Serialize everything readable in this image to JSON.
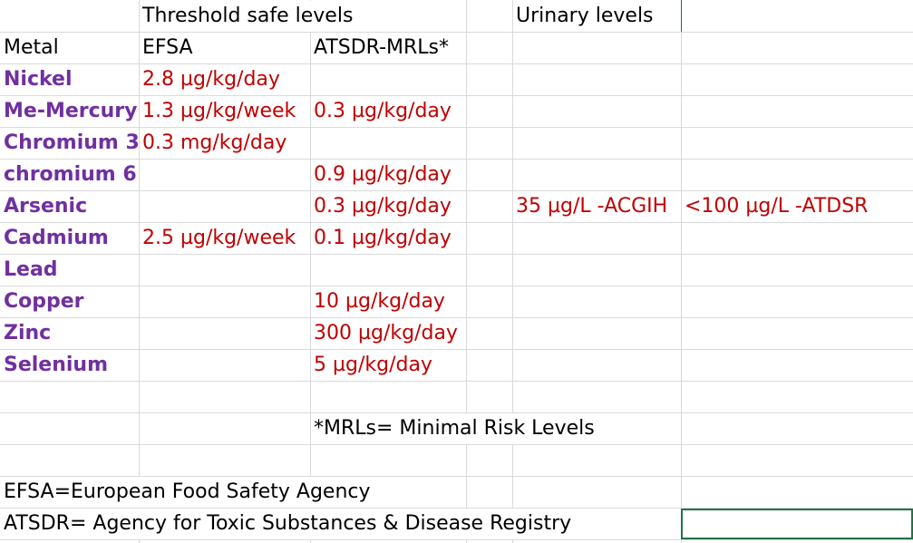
{
  "sheet": {
    "header_threshold": "Threshold safe levels",
    "header_urinary": "Urinary levels",
    "col_metal": "Metal",
    "col_efsa": "EFSA",
    "col_atsdr": "ATSDR-MRLs*",
    "rows": [
      {
        "metal": "Nickel",
        "efsa": "2.8 µg/kg/day",
        "atsdr": "",
        "urinary_acgih": "",
        "urinary_atsdr": ""
      },
      {
        "metal": "Me-Mercury",
        "efsa": "1.3 µg/kg/week",
        "atsdr": "0.3 µg/kg/day",
        "urinary_acgih": "",
        "urinary_atsdr": ""
      },
      {
        "metal": "Chromium 3",
        "efsa": "0.3 mg/kg/day",
        "atsdr": "",
        "urinary_acgih": "",
        "urinary_atsdr": ""
      },
      {
        "metal": "chromium 6",
        "efsa": "",
        "atsdr": "0.9 µg/kg/day",
        "urinary_acgih": "",
        "urinary_atsdr": ""
      },
      {
        "metal": "Arsenic",
        "efsa": "",
        "atsdr": "0.3 µg/kg/day",
        "urinary_acgih": "35 µg/L -ACGIH",
        "urinary_atsdr": "<100 µg/L -ATDSR"
      },
      {
        "metal": "Cadmium",
        "efsa": "2.5 µg/kg/week",
        "atsdr": "0.1 µg/kg/day",
        "urinary_acgih": "",
        "urinary_atsdr": ""
      },
      {
        "metal": "Lead",
        "efsa": "",
        "atsdr": "",
        "urinary_acgih": "",
        "urinary_atsdr": ""
      },
      {
        "metal": "Copper",
        "efsa": "",
        "atsdr": "10 µg/kg/day",
        "urinary_acgih": "",
        "urinary_atsdr": ""
      },
      {
        "metal": "Zinc",
        "efsa": "",
        "atsdr": "300 µg/kg/day",
        "urinary_acgih": "",
        "urinary_atsdr": ""
      },
      {
        "metal": "Selenium",
        "efsa": "",
        "atsdr": "5 µg/kg/day",
        "urinary_acgih": "",
        "urinary_atsdr": ""
      }
    ],
    "note_mrl": "*MRLs= Minimal Risk Levels",
    "note_efsa": "EFSA=European Food Safety Agency",
    "note_atsdr": "ATSDR= Agency for Toxic Substances & Disease Registry"
  },
  "colors": {
    "metal_name": "#7030a0",
    "value_red": "#c00000",
    "gridline": "#dadada",
    "selection": "#217346"
  }
}
